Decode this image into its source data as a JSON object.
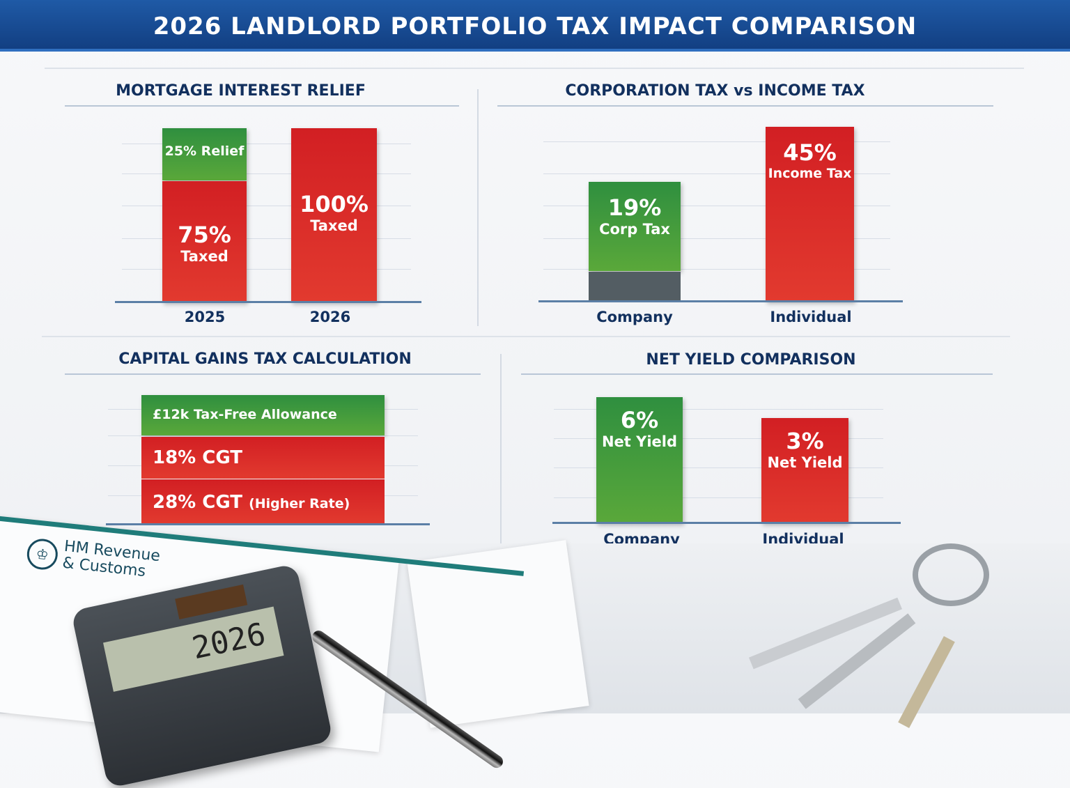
{
  "title": "2026 LANDLORD PORTFOLIO TAX IMPACT COMPARISON",
  "chart_data": [
    {
      "type": "bar",
      "stacked": true,
      "title": "MORTGAGE INTEREST RELIEF",
      "categories": [
        "2025",
        "2026"
      ],
      "series": [
        {
          "name": "Taxed",
          "values": [
            75,
            100
          ]
        },
        {
          "name": "Relief",
          "values": [
            25,
            0
          ]
        }
      ],
      "labels": {
        "relief_2025": "25% Relief",
        "taxed_2025_pct": "75%",
        "taxed_2025": "Taxed",
        "taxed_2026_pct": "100%",
        "taxed_2026": "Taxed"
      },
      "colors": {
        "taxed": "#d9242a",
        "relief": "#3a9440"
      }
    },
    {
      "type": "bar",
      "title": "CORPORATION TAX vs INCOME TAX",
      "categories": [
        "Company",
        "Individual"
      ],
      "values": [
        19,
        45
      ],
      "labels": {
        "company_pct": "19%",
        "company": "Corp Tax",
        "individual_pct": "45%",
        "individual": "Income Tax"
      },
      "colors": {
        "company": "#3f9a40",
        "individual": "#dd2a2a"
      }
    },
    {
      "type": "bar",
      "orientation": "horizontal-stacked",
      "title": "CAPITAL GAINS TAX CALCULATION",
      "rows": [
        "£12k Tax-Free Allowance",
        "18% CGT",
        "28% CGT (Higher Rate)"
      ],
      "row_parts": [
        {
          "pct": "",
          "text": "£12k Tax-Free Allowance"
        },
        {
          "pct": "18%",
          "text": "CGT"
        },
        {
          "pct": "28%",
          "text": "CGT",
          "note": "(Higher Rate)"
        }
      ],
      "colors": {
        "allowance": "#3a9440",
        "cgt": "#d9242a"
      }
    },
    {
      "type": "bar",
      "title": "NET YIELD COMPARISON",
      "categories": [
        "Company",
        "Individual"
      ],
      "values": [
        6,
        3
      ],
      "labels": {
        "company_pct": "6%",
        "company": "Net Yield",
        "individual_pct": "3%",
        "individual": "Net Yield"
      },
      "colors": {
        "company": "#3f9a40",
        "individual": "#dd2a2a"
      }
    }
  ],
  "scene": {
    "hmrc_line1": "HM Revenue",
    "hmrc_line2": "& Customs",
    "calculator_display": "2026"
  }
}
